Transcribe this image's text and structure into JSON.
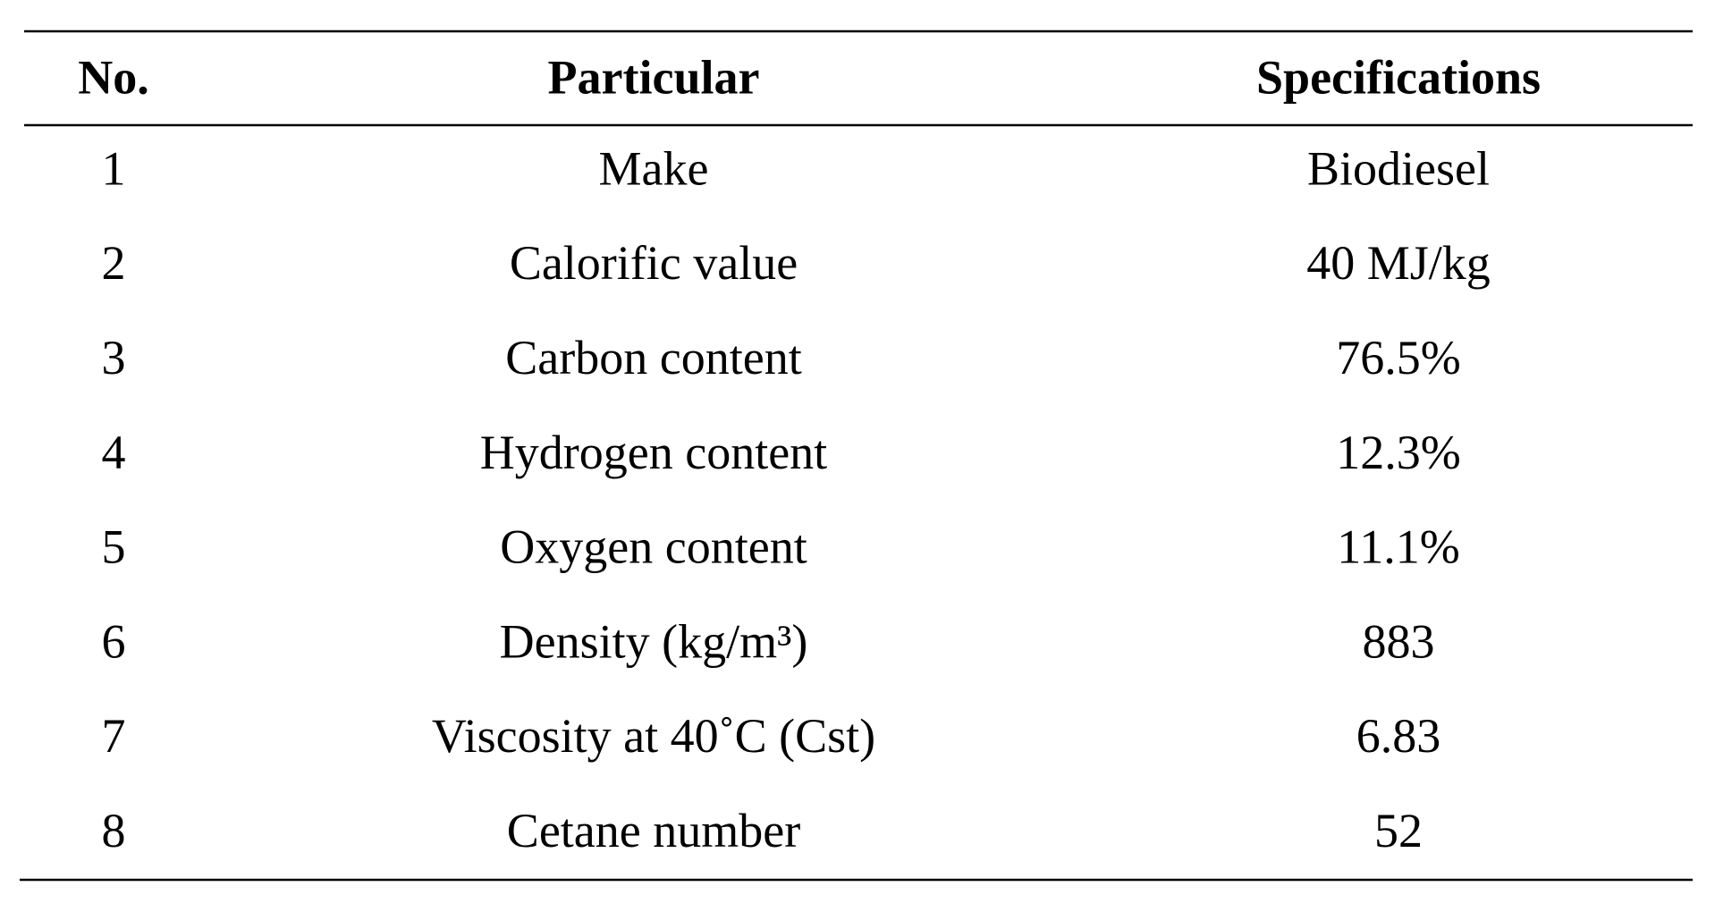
{
  "table": {
    "header": [
      "No.",
      "Particular",
      "Specifications"
    ],
    "rows": [
      [
        1,
        "Make",
        "Biodiesel"
      ],
      [
        2,
        "Calorific value",
        "40 MJ/kg"
      ],
      [
        3,
        "Carbon content",
        "76.5%"
      ],
      [
        4,
        "Hydrogen content",
        "12.3%"
      ],
      [
        5,
        "Oxygen content",
        "11.1%"
      ],
      [
        6,
        "Density (kg/m³)",
        883
      ],
      [
        7,
        "Viscosity at 40˚C (Cst)",
        6.83
      ],
      [
        8,
        "Cetane number",
        52
      ]
    ]
  }
}
